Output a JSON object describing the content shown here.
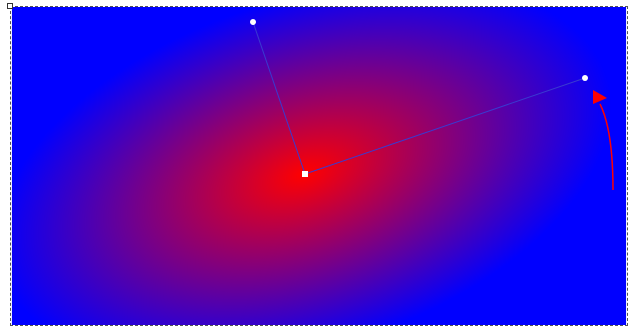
{
  "canvas": {
    "gradient": {
      "type": "radial",
      "stops": [
        {
          "offset": 0,
          "color": "#ff0000"
        },
        {
          "offset": 1,
          "color": "#0000ff"
        }
      ]
    },
    "handle_color": "#ffffff",
    "line_color": "#3a3ad0",
    "arrow_color": "#ff0000",
    "icons": {
      "center": "center-handle-square-icon",
      "radius_a": "radius-handle-dot-icon",
      "radius_b": "radius-handle-dot-icon",
      "rotate": "rotate-arrow-icon",
      "corner": "selection-corner-handle-icon"
    }
  }
}
